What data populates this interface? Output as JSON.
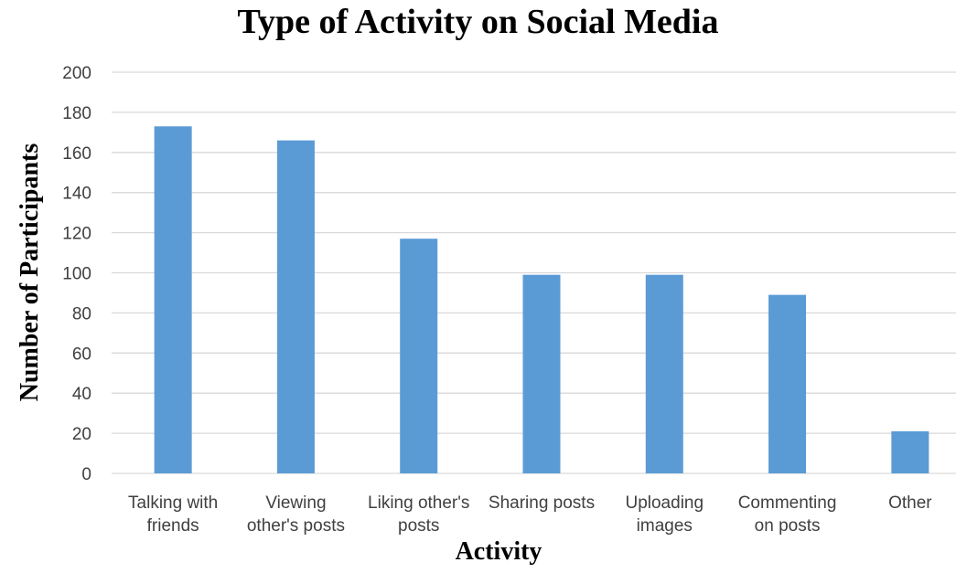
{
  "chart_data": {
    "type": "bar",
    "title": "Type of Activity on Social Media",
    "xlabel": "Activity",
    "ylabel": "Number of Participants",
    "categories": [
      [
        "Talking with",
        "friends"
      ],
      [
        "Viewing",
        "other's posts"
      ],
      [
        "Liking other's",
        "posts"
      ],
      [
        "Sharing posts"
      ],
      [
        "Uploading",
        "images"
      ],
      [
        "Commenting",
        "on posts"
      ],
      [
        "Other"
      ]
    ],
    "values": [
      173,
      166,
      117,
      99,
      99,
      89,
      21
    ],
    "ylim": [
      0,
      200
    ],
    "yticks": [
      0,
      20,
      40,
      60,
      80,
      100,
      120,
      140,
      160,
      180,
      200
    ],
    "grid": true,
    "legend": "none",
    "bar_color": "#5B9BD5",
    "grid_color": "#D9D9D9"
  }
}
